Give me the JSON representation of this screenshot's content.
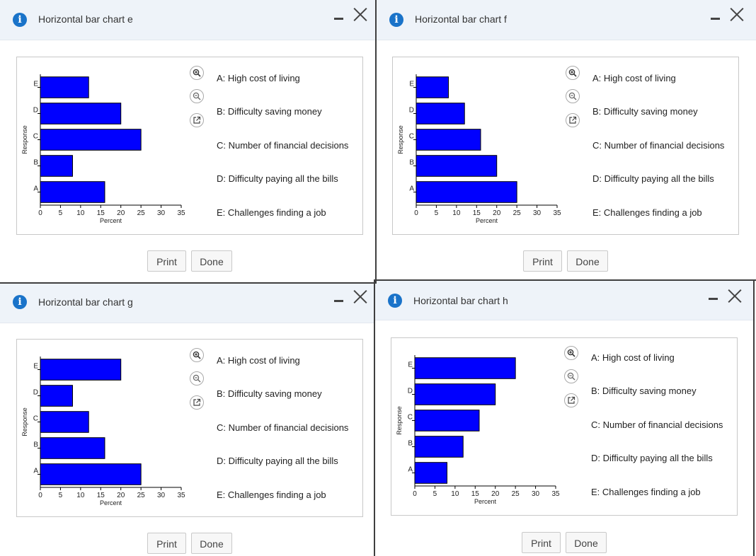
{
  "dialogs": [
    {
      "title": "Horizontal bar chart e",
      "legend": [
        "A: High cost of living",
        "B: Difficulty saving money",
        "C: Number of financial decisions",
        "D: Difficulty paying all the bills",
        "E: Challenges finding a job"
      ],
      "print_label": "Print",
      "done_label": "Done"
    },
    {
      "title": "Horizontal bar chart f",
      "legend": [
        "A: High cost of living",
        "B: Difficulty saving money",
        "C: Number of financial decisions",
        "D: Difficulty paying all the bills",
        "E: Challenges finding a job"
      ],
      "print_label": "Print",
      "done_label": "Done"
    },
    {
      "title": "Horizontal bar chart g",
      "legend": [
        "A: High cost of living",
        "B: Difficulty saving money",
        "C: Number of financial decisions",
        "D: Difficulty paying all the bills",
        "E: Challenges finding a job"
      ],
      "print_label": "Print",
      "done_label": "Done"
    },
    {
      "title": "Horizontal bar chart h",
      "legend": [
        "A: High cost of living",
        "B: Difficulty saving money",
        "C: Number of financial decisions",
        "D: Difficulty paying all the bills",
        "E: Challenges finding a job"
      ],
      "print_label": "Print",
      "done_label": "Done"
    }
  ],
  "icons": {
    "info": "info-icon",
    "zoom_in": "zoom-in-icon",
    "zoom_out": "zoom-out-icon",
    "popout": "external-link-icon",
    "minimize": "minimize-icon",
    "close": "close-icon"
  },
  "colors": {
    "bar_fill": "#0000ff",
    "bar_stroke": "#000000",
    "accent": "#1a73c9",
    "titlebar": "#eef3f9"
  },
  "chart_data": [
    {
      "type": "bar",
      "orientation": "horizontal",
      "categories": [
        "A",
        "B",
        "C",
        "D",
        "E"
      ],
      "values": [
        16,
        8,
        25,
        20,
        12
      ],
      "xlabel": "Percent",
      "ylabel": "Response",
      "xlim": [
        0,
        35
      ],
      "xticks": [
        0,
        5,
        10,
        15,
        20,
        25,
        30,
        35
      ]
    },
    {
      "type": "bar",
      "orientation": "horizontal",
      "categories": [
        "A",
        "B",
        "C",
        "D",
        "E"
      ],
      "values": [
        25,
        20,
        16,
        12,
        8
      ],
      "xlabel": "Percent",
      "ylabel": "Response",
      "xlim": [
        0,
        35
      ],
      "xticks": [
        0,
        5,
        10,
        15,
        20,
        25,
        30,
        35
      ]
    },
    {
      "type": "bar",
      "orientation": "horizontal",
      "categories": [
        "A",
        "B",
        "C",
        "D",
        "E"
      ],
      "values": [
        25,
        16,
        12,
        8,
        20
      ],
      "xlabel": "Percent",
      "ylabel": "Response",
      "xlim": [
        0,
        35
      ],
      "xticks": [
        0,
        5,
        10,
        15,
        20,
        25,
        30,
        35
      ]
    },
    {
      "type": "bar",
      "orientation": "horizontal",
      "categories": [
        "A",
        "B",
        "C",
        "D",
        "E"
      ],
      "values": [
        8,
        12,
        16,
        20,
        25
      ],
      "xlabel": "Percent",
      "ylabel": "Response",
      "xlim": [
        0,
        35
      ],
      "xticks": [
        0,
        5,
        10,
        15,
        20,
        25,
        30,
        35
      ]
    }
  ]
}
